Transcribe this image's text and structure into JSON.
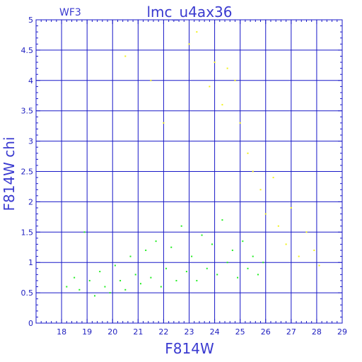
{
  "chart_data": {
    "type": "scatter",
    "title": "lmc_u4ax36",
    "subtitle": "WF3",
    "xlabel": "F814W",
    "ylabel": "F814W  chi",
    "xlim": [
      17,
      29
    ],
    "ylim": [
      0,
      5
    ],
    "xticks": [
      "18",
      "19",
      "20",
      "21",
      "22",
      "23",
      "24",
      "25",
      "26",
      "27",
      "28",
      "29"
    ],
    "yticks": [
      "0",
      "0.5",
      "1",
      "1.5",
      "2",
      "2.5",
      "3",
      "3.5",
      "4",
      "4.5",
      "5"
    ],
    "grid": true,
    "colors": {
      "frame": "#1818c8",
      "grid": "#1818c8",
      "green": "#22ee22",
      "yellow": "#f2f21a",
      "text": "#3a3ad0"
    },
    "series": [
      {
        "color": "green",
        "values": [
          [
            18.2,
            0.6
          ],
          [
            18.5,
            0.75
          ],
          [
            18.7,
            0.55
          ],
          [
            18.9,
            1.5
          ],
          [
            19.1,
            0.7
          ],
          [
            19.3,
            0.45
          ],
          [
            19.5,
            0.85
          ],
          [
            19.7,
            0.6
          ],
          [
            19.9,
            0.5
          ],
          [
            20.1,
            0.95
          ],
          [
            20.3,
            0.7
          ],
          [
            20.5,
            0.55
          ],
          [
            20.7,
            1.1
          ],
          [
            20.9,
            0.8
          ],
          [
            21.1,
            0.65
          ],
          [
            21.3,
            1.2
          ],
          [
            21.5,
            0.75
          ],
          [
            21.7,
            1.35
          ],
          [
            21.9,
            0.6
          ],
          [
            22.1,
            0.9
          ],
          [
            22.3,
            1.25
          ],
          [
            22.5,
            0.7
          ],
          [
            22.7,
            1.6
          ],
          [
            22.9,
            0.85
          ],
          [
            23.1,
            1.1
          ],
          [
            23.3,
            0.7
          ],
          [
            23.5,
            1.45
          ],
          [
            23.7,
            0.9
          ],
          [
            23.9,
            1.3
          ],
          [
            24.1,
            0.8
          ],
          [
            24.3,
            1.7
          ],
          [
            24.5,
            1.0
          ],
          [
            24.7,
            1.2
          ],
          [
            24.9,
            0.75
          ],
          [
            25.1,
            1.35
          ],
          [
            25.3,
            0.9
          ],
          [
            25.5,
            1.1
          ],
          [
            25.7,
            0.8
          ],
          [
            25.9,
            1.0
          ]
        ]
      },
      {
        "color": "yellow",
        "values": [
          [
            20.5,
            4.4
          ],
          [
            21.5,
            4.0
          ],
          [
            22.0,
            3.3
          ],
          [
            23.0,
            4.6
          ],
          [
            23.3,
            4.8
          ],
          [
            23.8,
            3.9
          ],
          [
            24.0,
            4.3
          ],
          [
            24.3,
            3.6
          ],
          [
            24.5,
            4.2
          ],
          [
            24.8,
            4.0
          ],
          [
            25.0,
            3.3
          ],
          [
            25.3,
            2.8
          ],
          [
            25.5,
            2.5
          ],
          [
            25.8,
            2.2
          ],
          [
            26.0,
            1.8
          ],
          [
            26.3,
            2.4
          ],
          [
            26.5,
            1.6
          ],
          [
            26.8,
            1.3
          ],
          [
            27.0,
            1.9
          ],
          [
            27.3,
            1.1
          ],
          [
            27.6,
            1.5
          ],
          [
            27.9,
            1.2
          ],
          [
            28.1,
            0.95
          ]
        ]
      }
    ]
  }
}
